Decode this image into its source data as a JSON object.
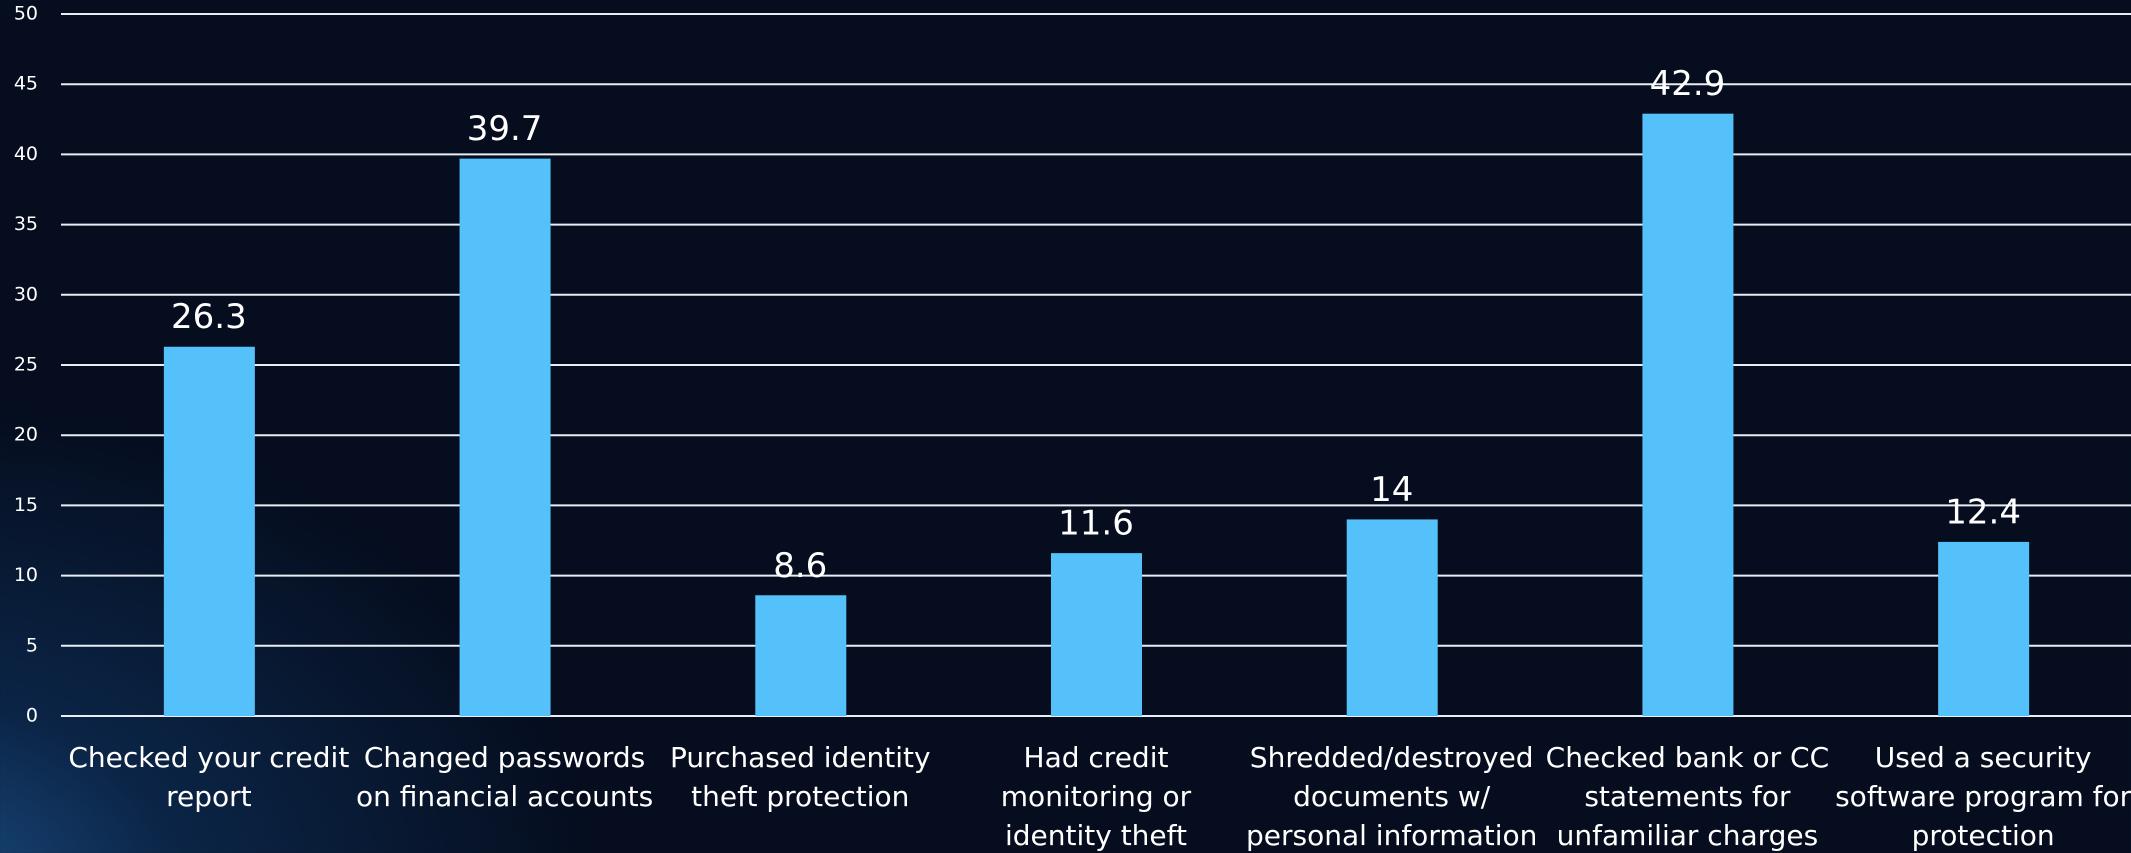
{
  "chart_data": {
    "type": "bar",
    "categories": [
      "Checked your credit report",
      "Changed passwords on financial accounts",
      "Purchased identity theft protection",
      "Had credit monitoring or identity theft insurance",
      "Shredded/destroyed documents w/ personal information",
      "Checked bank or CC statements for unfamiliar charges",
      "Used a security software program for protection"
    ],
    "values": [
      26.3,
      39.7,
      8.6,
      11.6,
      14,
      42.9,
      12.4
    ],
    "color": "#55c1fb",
    "ylim": [
      0,
      50
    ],
    "yticks": [
      0,
      5,
      10,
      15,
      20,
      25,
      30,
      35,
      40,
      45,
      50
    ],
    "grid": true
  }
}
